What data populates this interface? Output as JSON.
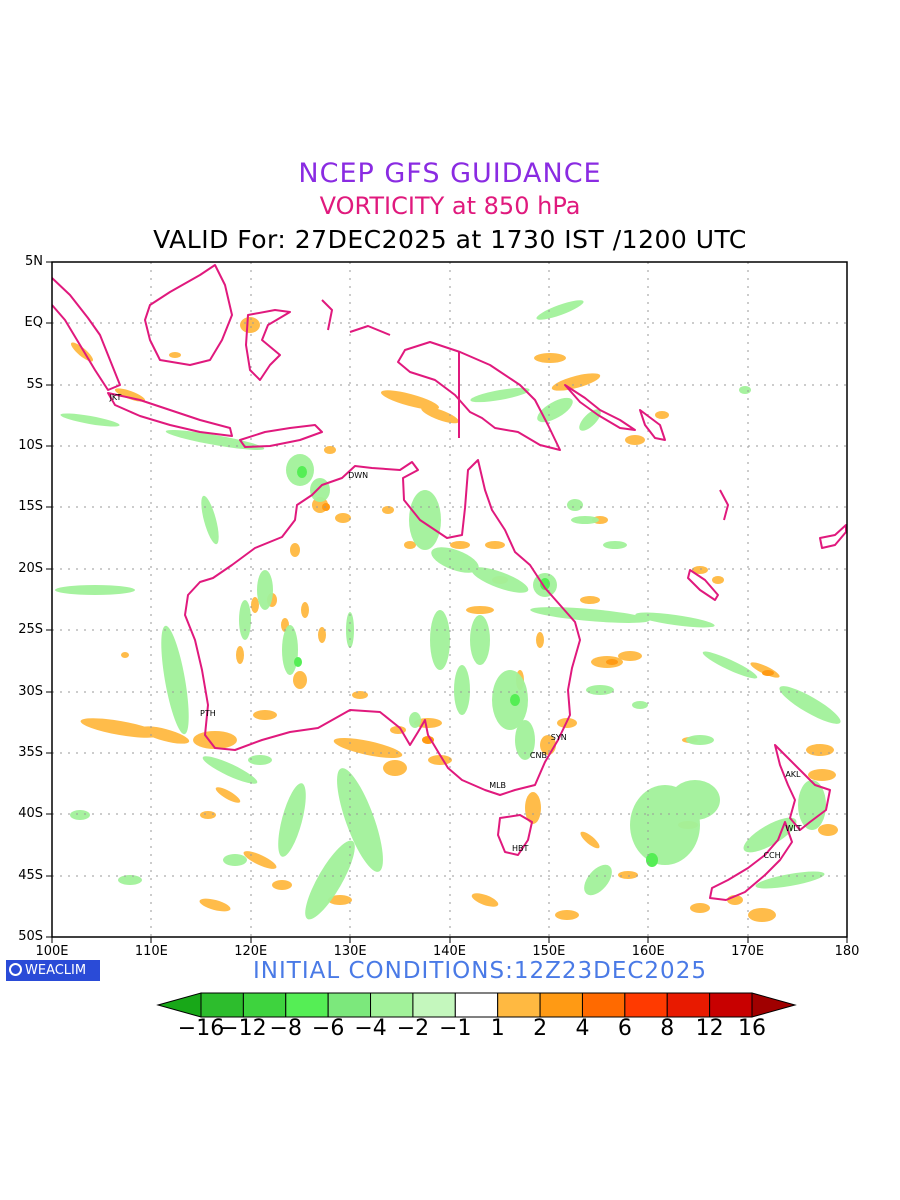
{
  "titles": {
    "line1": "NCEP GFS GUIDANCE",
    "line2": "VORTICITY at 850 hPa",
    "line3": "VALID For: 27DEC2025 at 1730 IST /1200 UTC"
  },
  "map": {
    "lat_labels": [
      "5N",
      "EQ",
      "5S",
      "10S",
      "15S",
      "20S",
      "25S",
      "30S",
      "35S",
      "40S",
      "45S",
      "50S"
    ],
    "lon_labels": [
      "100E",
      "110E",
      "120E",
      "130E",
      "140E",
      "150E",
      "160E",
      "170E",
      "180"
    ],
    "cities": [
      {
        "name": "JKT",
        "lon": 106.8,
        "lat": -6.2
      },
      {
        "name": "DWN",
        "lon": 130.8,
        "lat": -12.5
      },
      {
        "name": "PTH",
        "lon": 115.9,
        "lat": -31.9
      },
      {
        "name": "SYN",
        "lon": 151.2,
        "lat": -33.9
      },
      {
        "name": "CNB",
        "lon": 149.1,
        "lat": -35.3
      },
      {
        "name": "MLB",
        "lon": 145.0,
        "lat": -37.8
      },
      {
        "name": "HBT",
        "lon": 147.3,
        "lat": -42.9
      },
      {
        "name": "AKL",
        "lon": 174.8,
        "lat": -36.9
      },
      {
        "name": "WLT",
        "lon": 174.8,
        "lat": -41.3
      },
      {
        "name": "CCH",
        "lon": 172.6,
        "lat": -43.5
      }
    ],
    "colors": {
      "coastline": "#e0197d",
      "grid": "#999999"
    }
  },
  "footer": {
    "brand": "WEACLIM",
    "initial": "INITIAL  CONDITIONS:12Z23DEC2025"
  },
  "colorbar": {
    "labels": [
      "−16",
      "−12",
      "−8",
      "−6",
      "−4",
      "−2",
      "−1",
      "1",
      "2",
      "4",
      "6",
      "8",
      "12",
      "16"
    ],
    "colors": [
      "#18a818",
      "#2dbd2d",
      "#3ed33e",
      "#55ee55",
      "#7ce87c",
      "#a2f29a",
      "#c4f7bd",
      "#ffffff",
      "#ffb941",
      "#ff9a14",
      "#ff6a00",
      "#ff3a00",
      "#e81a00",
      "#c80000",
      "#a00000"
    ]
  }
}
